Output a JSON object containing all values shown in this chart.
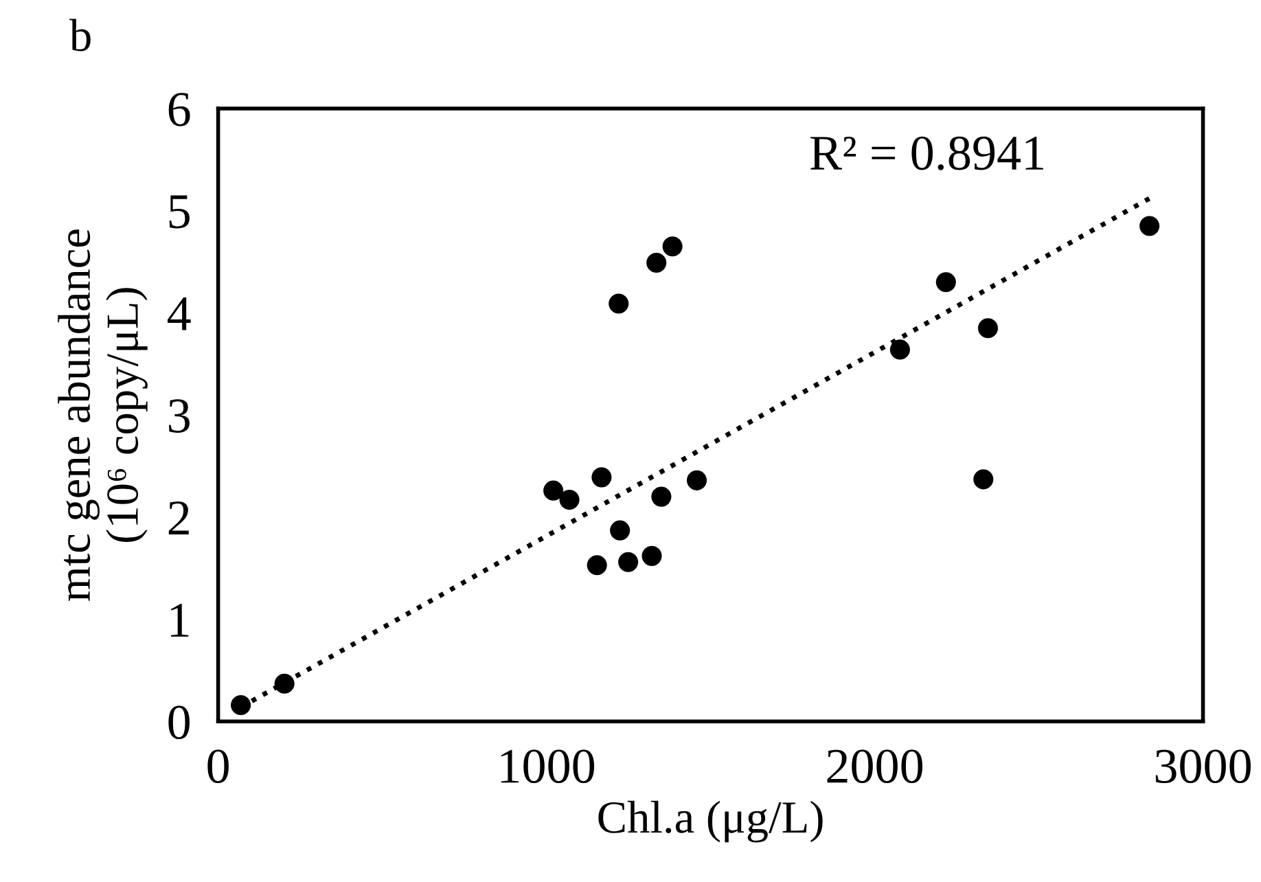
{
  "chart_data": {
    "type": "scatter",
    "xlabel": "Chl.a (μg/L)",
    "ylabel": "mtc gene abundance\n(10⁶ copy/μL)",
    "annotations": [
      "b",
      "R² = 0.8941"
    ],
    "series": [
      {
        "color": "#000000",
        "marker": "circle",
        "x": [
          69,
          202,
          1021,
          1070,
          1168,
          1220,
          1224,
          1154,
          1249,
          1321,
          1350,
          1335,
          1384,
          1458,
          2077,
          2217,
          2345,
          2331,
          2837
        ],
        "values": [
          0.16,
          0.37,
          2.26,
          2.17,
          2.39,
          4.09,
          1.87,
          1.53,
          1.56,
          1.62,
          2.2,
          4.49,
          4.65,
          2.36,
          3.64,
          4.3,
          3.85,
          2.37,
          4.85
        ]
      },
      {
        "type": "line",
        "color": "#000000",
        "line_style": "dotted",
        "marker": "none",
        "x": [
          69,
          2837
        ],
        "values": [
          0.14,
          5.12
        ]
      }
    ],
    "xlim": [
      0,
      3000
    ],
    "xticks": [
      0,
      1000,
      2000,
      3000
    ],
    "ylim": [
      0,
      6
    ],
    "yticks": [
      0,
      1,
      2,
      3,
      4,
      5,
      6
    ],
    "grid": false,
    "legend": false
  }
}
